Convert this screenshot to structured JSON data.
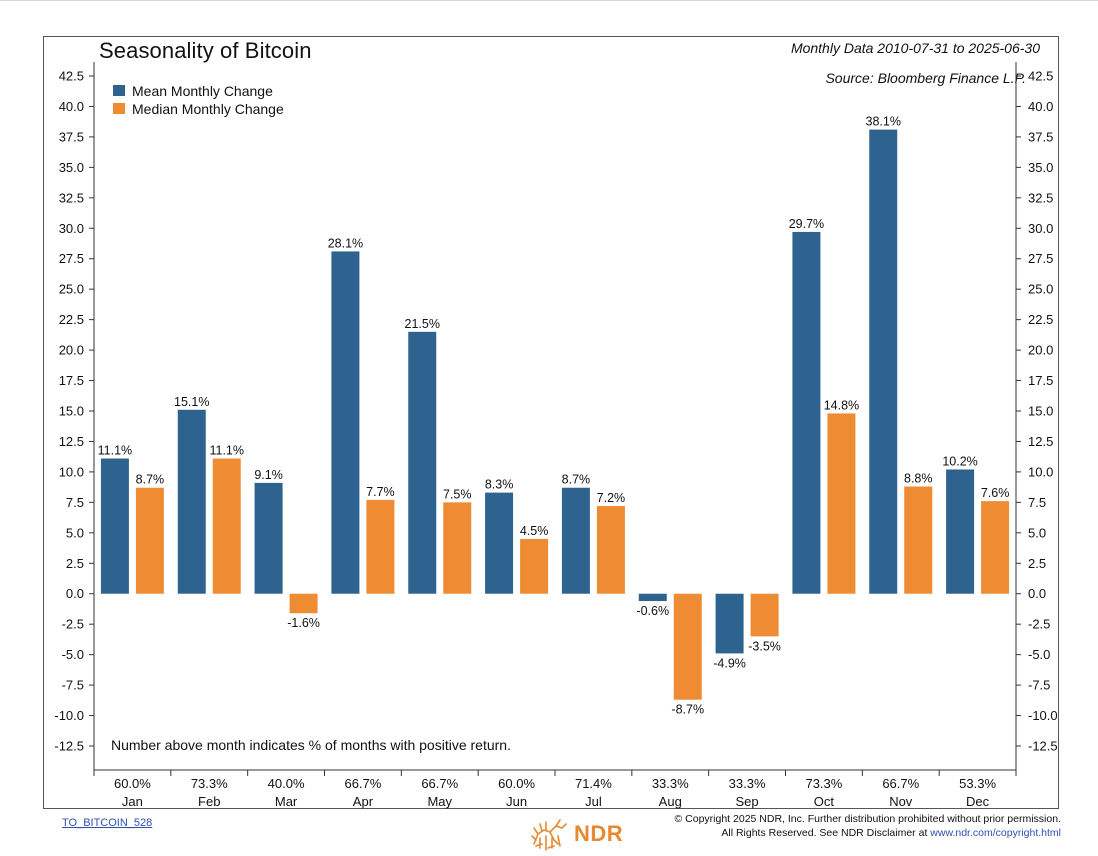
{
  "colors": {
    "mean": "#2e6390",
    "median": "#ef8c33",
    "axis": "#333333",
    "link": "#3050b0",
    "logo": "#e58a30"
  },
  "header": {
    "title": "Seasonality of Bitcoin",
    "range": "Monthly Data 2010-07-31 to 2025-06-30",
    "source": "Source:   Bloomberg Finance L.P."
  },
  "footnote": "Number above month indicates % of months with positive return.",
  "footer": {
    "doc_id": "TO_BITCOIN_528",
    "copyright_line1": "© Copyright 2025 NDR, Inc. Further distribution prohibited without prior permission.",
    "copyright_line2_prefix": "All Rights Reserved. See NDR Disclaimer at ",
    "copyright_url": "www.ndr.com/copyright.html",
    "logo_text": "NDR",
    "logo_icon": "bull-and-bear-icon"
  },
  "chart_data": {
    "type": "bar",
    "title": "Seasonality of Bitcoin",
    "categories": [
      "Jan",
      "Feb",
      "Mar",
      "Apr",
      "May",
      "Jun",
      "Jul",
      "Aug",
      "Sep",
      "Oct",
      "Nov",
      "Dec"
    ],
    "positive_pct": [
      "60.0%",
      "73.3%",
      "40.0%",
      "66.7%",
      "66.7%",
      "60.0%",
      "71.4%",
      "33.3%",
      "33.3%",
      "73.3%",
      "66.7%",
      "53.3%"
    ],
    "series": [
      {
        "name": "Mean Monthly Change",
        "values": [
          11.1,
          15.1,
          9.1,
          28.1,
          21.5,
          8.3,
          8.7,
          -0.6,
          -4.9,
          29.7,
          38.1,
          10.2
        ],
        "labels": [
          "11.1%",
          "15.1%",
          "9.1%",
          "28.1%",
          "21.5%",
          "8.3%",
          "8.7%",
          "-0.6%",
          "-4.9%",
          "29.7%",
          "38.1%",
          "10.2%"
        ]
      },
      {
        "name": "Median Monthly Change",
        "values": [
          8.7,
          11.1,
          -1.6,
          7.7,
          7.5,
          4.5,
          7.2,
          -8.7,
          -3.5,
          14.8,
          8.8,
          7.6
        ],
        "labels": [
          "8.7%",
          "11.1%",
          "-1.6%",
          "7.7%",
          "7.5%",
          "4.5%",
          "7.2%",
          "-8.7%",
          "-3.5%",
          "14.8%",
          "8.8%",
          "7.6%"
        ]
      }
    ],
    "ylim": [
      -12.5,
      42.5
    ],
    "yticks": [
      "-12.5",
      "-10.0",
      "-7.5",
      "-5.0",
      "-2.5",
      "0.0",
      "2.5",
      "5.0",
      "7.5",
      "10.0",
      "12.5",
      "15.0",
      "17.5",
      "20.0",
      "22.5",
      "25.0",
      "27.5",
      "30.0",
      "32.5",
      "35.0",
      "37.5",
      "40.0",
      "42.5"
    ],
    "ytick_values": [
      -12.5,
      -10,
      -7.5,
      -5,
      -2.5,
      0,
      2.5,
      5,
      7.5,
      10,
      12.5,
      15,
      17.5,
      20,
      22.5,
      25,
      27.5,
      30,
      32.5,
      35,
      37.5,
      40,
      42.5
    ],
    "legend": "top-left",
    "grid": false
  }
}
